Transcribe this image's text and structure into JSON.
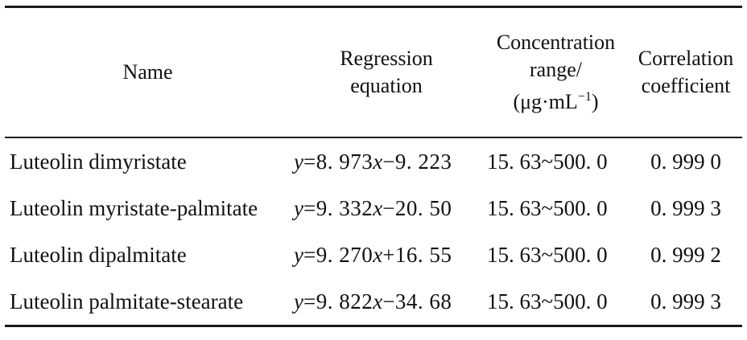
{
  "table": {
    "headers": {
      "name": "Name",
      "regression_line1": "Regression",
      "regression_line2": "equation",
      "range_line1": "Concentration",
      "range_line2": "range/",
      "range_unit_open": "(μg·mL",
      "range_unit_sup": "−1",
      "range_unit_close": ")",
      "corr_line1": "Correlation",
      "corr_line2": "coefficient"
    },
    "rows": [
      {
        "name": "Luteolin dimyristate",
        "y": "y",
        "eq_mid": "=8. 973",
        "x": "x",
        "eq_end": "−9. 223",
        "range": "15. 63~500. 0",
        "coef": "0. 999 0"
      },
      {
        "name": "Luteolin myristate-palmitate",
        "y": "y",
        "eq_mid": "=9. 332",
        "x": "x",
        "eq_end": "−20. 50",
        "range": "15. 63~500. 0",
        "coef": "0. 999 3"
      },
      {
        "name": "Luteolin dipalmitate",
        "y": "y",
        "eq_mid": "=9. 270",
        "x": "x",
        "eq_end": "+16. 55",
        "range": "15. 63~500. 0",
        "coef": "0. 999 2"
      },
      {
        "name": "Luteolin palmitate-stearate",
        "y": "y",
        "eq_mid": "=9. 822",
        "x": "x",
        "eq_end": "−34. 68",
        "range": "15. 63~500. 0",
        "coef": "0. 999 3"
      }
    ]
  }
}
